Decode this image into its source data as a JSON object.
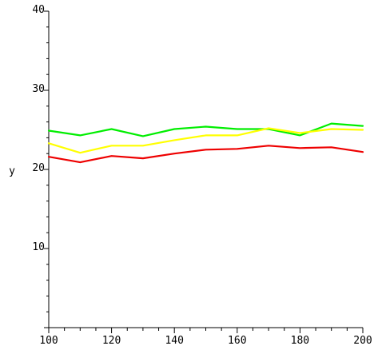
{
  "chart_data": {
    "type": "line",
    "title": "",
    "xlabel": "",
    "ylabel": "y",
    "xlim": [
      100,
      200
    ],
    "ylim": [
      0,
      40
    ],
    "x_ticks": [
      100,
      120,
      140,
      160,
      180,
      200
    ],
    "y_ticks": [
      10,
      20,
      30,
      40
    ],
    "x_tick_labels": [
      "100",
      "120",
      "140",
      "160",
      "180",
      "200"
    ],
    "y_tick_labels": [
      "10",
      "20",
      "30",
      "40"
    ],
    "grid": false,
    "legend": "none",
    "x": [
      100,
      110,
      120,
      130,
      140,
      150,
      160,
      170,
      180,
      190,
      200
    ],
    "series": [
      {
        "color": "#00ee00",
        "values": [
          24.9,
          24.3,
          25.1,
          24.2,
          25.1,
          25.4,
          25.1,
          25.1,
          24.3,
          25.8,
          25.5
        ]
      },
      {
        "color": "#ffff00",
        "values": [
          23.3,
          22.1,
          23.0,
          23.0,
          23.7,
          24.3,
          24.3,
          25.2,
          24.6,
          25.1,
          25.0
        ]
      },
      {
        "color": "#ee0000",
        "values": [
          21.6,
          20.9,
          21.7,
          21.4,
          22.0,
          22.5,
          22.6,
          23.0,
          22.7,
          22.8,
          22.2
        ]
      }
    ]
  }
}
